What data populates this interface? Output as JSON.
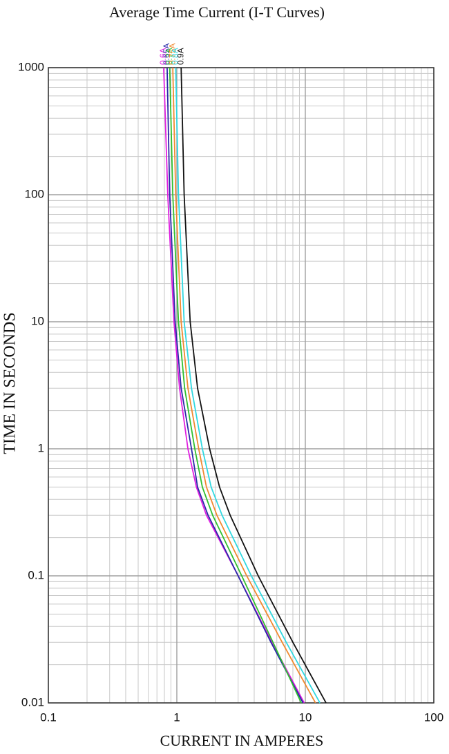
{
  "chart_data": {
    "type": "line",
    "title": "Average Time Current (I-T Curves)",
    "x_label": "CURRENT IN AMPERES",
    "y_label": "TIME IN SECONDS",
    "xscale": "log",
    "yscale": "log",
    "grid": true,
    "xlim": [
      0.1,
      100
    ],
    "xticks": [
      0.1,
      1,
      10,
      100
    ],
    "ylim": [
      0.01,
      1000
    ],
    "yticks": [
      0.01,
      0.1,
      1,
      10,
      100,
      1000
    ],
    "series": [
      {
        "name": "0.6A",
        "color": "#e020e0",
        "x": [
          0.79,
          0.85,
          0.95,
          1.05,
          1.22,
          1.42,
          1.7,
          3.0,
          5.5,
          9.8
        ],
        "values": [
          1000,
          100,
          10,
          3,
          1,
          0.5,
          0.3,
          0.1,
          0.03,
          0.01
        ]
      },
      {
        "name": "0.65A",
        "color": "#2a2aa8",
        "x": [
          0.84,
          0.88,
          0.97,
          1.08,
          1.3,
          1.45,
          1.75,
          3.0,
          5.4,
          9.6
        ],
        "values": [
          1000,
          100,
          10,
          3,
          1,
          0.5,
          0.3,
          0.1,
          0.03,
          0.01
        ]
      },
      {
        "name": "0.7A",
        "color": "#30c030",
        "x": [
          0.88,
          0.93,
          1.03,
          1.15,
          1.38,
          1.58,
          1.9,
          3.2,
          5.6,
          9.3
        ],
        "values": [
          1000,
          100,
          10,
          3,
          1,
          0.5,
          0.3,
          0.1,
          0.03,
          0.01
        ]
      },
      {
        "name": "0.75A",
        "color": "#f08a30",
        "x": [
          0.93,
          0.98,
          1.08,
          1.22,
          1.48,
          1.7,
          2.05,
          3.5,
          6.6,
          12.0
        ],
        "values": [
          1000,
          100,
          10,
          3,
          1,
          0.5,
          0.3,
          0.1,
          0.03,
          0.01
        ]
      },
      {
        "name": "0.8A",
        "color": "#30d8e0",
        "x": [
          0.98,
          1.03,
          1.14,
          1.3,
          1.58,
          1.85,
          2.25,
          3.8,
          7.1,
          13.0
        ],
        "values": [
          1000,
          100,
          10,
          3,
          1,
          0.5,
          0.3,
          0.1,
          0.03,
          0.01
        ]
      },
      {
        "name": "0.9A",
        "color": "#111111",
        "x": [
          1.08,
          1.14,
          1.27,
          1.45,
          1.8,
          2.15,
          2.6,
          4.3,
          8.0,
          14.5
        ],
        "values": [
          1000,
          100,
          10,
          3,
          1,
          0.5,
          0.3,
          0.1,
          0.03,
          0.01
        ]
      }
    ]
  }
}
